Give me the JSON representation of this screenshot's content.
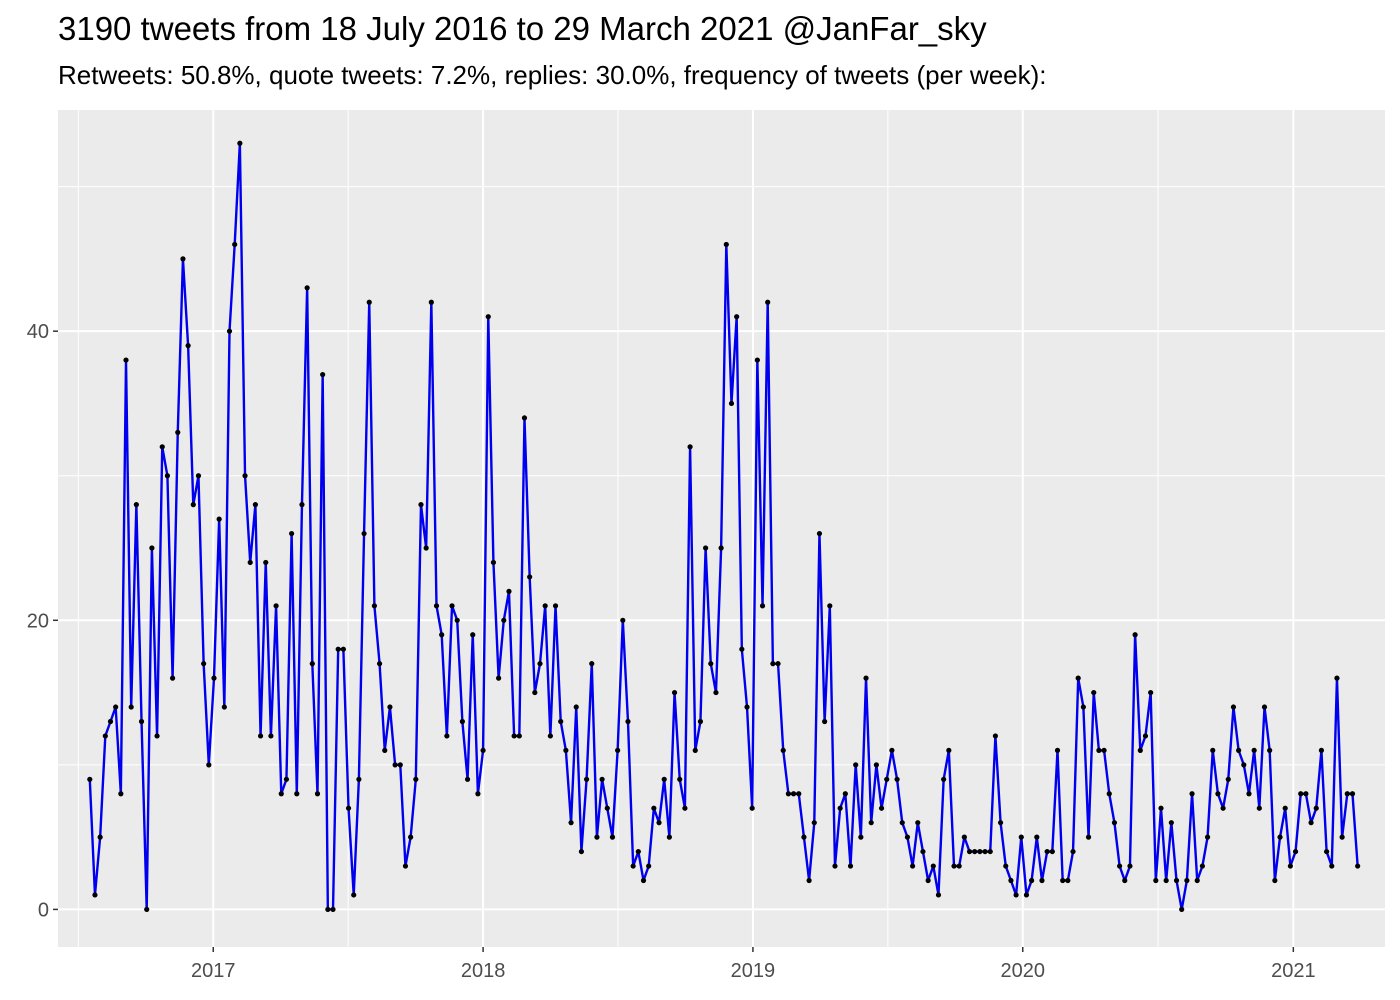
{
  "chart_data": {
    "type": "line",
    "title": "3190 tweets from 18 July 2016 to 29 March 2021 @JanFar_sky",
    "subtitle": "Retweets: 50.8%, quote tweets: 7.2%, replies: 30.0%, frequency of tweets (per week):",
    "xlabel": "",
    "ylabel": "",
    "x_start": "2016-07-18",
    "x_step_days": 7,
    "xlim": [
      "2016-06-05",
      "2021-05-05"
    ],
    "ylim": [
      -2.6,
      55.3
    ],
    "x_ticks": [
      {
        "label": "2017",
        "date": "2017-01-01"
      },
      {
        "label": "2018",
        "date": "2018-01-01"
      },
      {
        "label": "2019",
        "date": "2019-01-01"
      },
      {
        "label": "2020",
        "date": "2020-01-01"
      },
      {
        "label": "2021",
        "date": "2021-01-01"
      }
    ],
    "y_ticks": [
      0,
      20,
      40
    ],
    "grid": true,
    "legend": "none",
    "colors": {
      "line": "#0000ee",
      "point": "#000000",
      "panel": "#ebebeb",
      "grid": "#ffffff"
    },
    "series": [
      {
        "values": [
          9,
          1,
          5,
          12,
          13,
          14,
          8,
          38,
          14,
          28,
          13,
          0,
          25,
          12,
          32,
          30,
          16,
          33,
          45,
          39,
          28,
          30,
          17,
          10,
          16,
          27,
          14,
          40,
          46,
          53,
          30,
          24,
          28,
          12,
          24,
          12,
          21,
          8,
          9,
          26,
          8,
          28,
          43,
          17,
          8,
          37,
          0,
          0,
          18,
          18,
          7,
          1,
          9,
          26,
          42,
          21,
          17,
          11,
          14,
          10,
          10,
          3,
          5,
          9,
          28,
          25,
          42,
          21,
          19,
          12,
          21,
          20,
          13,
          9,
          19,
          8,
          11,
          41,
          24,
          16,
          20,
          22,
          12,
          12,
          34,
          23,
          15,
          17,
          21,
          12,
          21,
          13,
          11,
          6,
          14,
          4,
          9,
          17,
          5,
          9,
          7,
          5,
          11,
          20,
          13,
          3,
          4,
          2,
          3,
          7,
          6,
          9,
          5,
          15,
          9,
          7,
          32,
          11,
          13,
          25,
          17,
          15,
          25,
          46,
          35,
          41,
          18,
          14,
          7,
          38,
          21,
          42,
          17,
          17,
          11,
          8,
          8,
          8,
          5,
          2,
          6,
          26,
          13,
          21,
          3,
          7,
          8,
          3,
          10,
          5,
          16,
          6,
          10,
          7,
          9,
          11,
          9,
          6,
          5,
          3,
          6,
          4,
          2,
          3,
          1,
          9,
          11,
          3,
          3,
          5,
          4,
          4,
          4,
          4,
          4,
          12,
          6,
          3,
          2,
          1,
          5,
          1,
          2,
          5,
          2,
          4,
          4,
          11,
          2,
          2,
          4,
          16,
          14,
          5,
          15,
          11,
          11,
          8,
          6,
          3,
          2,
          3,
          19,
          11,
          12,
          15,
          2,
          7,
          2,
          6,
          2,
          0,
          2,
          8,
          2,
          3,
          5,
          11,
          8,
          7,
          9,
          14,
          11,
          10,
          8,
          11,
          7,
          14,
          11,
          2,
          5,
          7,
          3,
          4,
          8,
          8,
          6,
          7,
          11,
          4,
          3,
          16,
          5,
          8,
          8,
          3
        ]
      }
    ]
  }
}
